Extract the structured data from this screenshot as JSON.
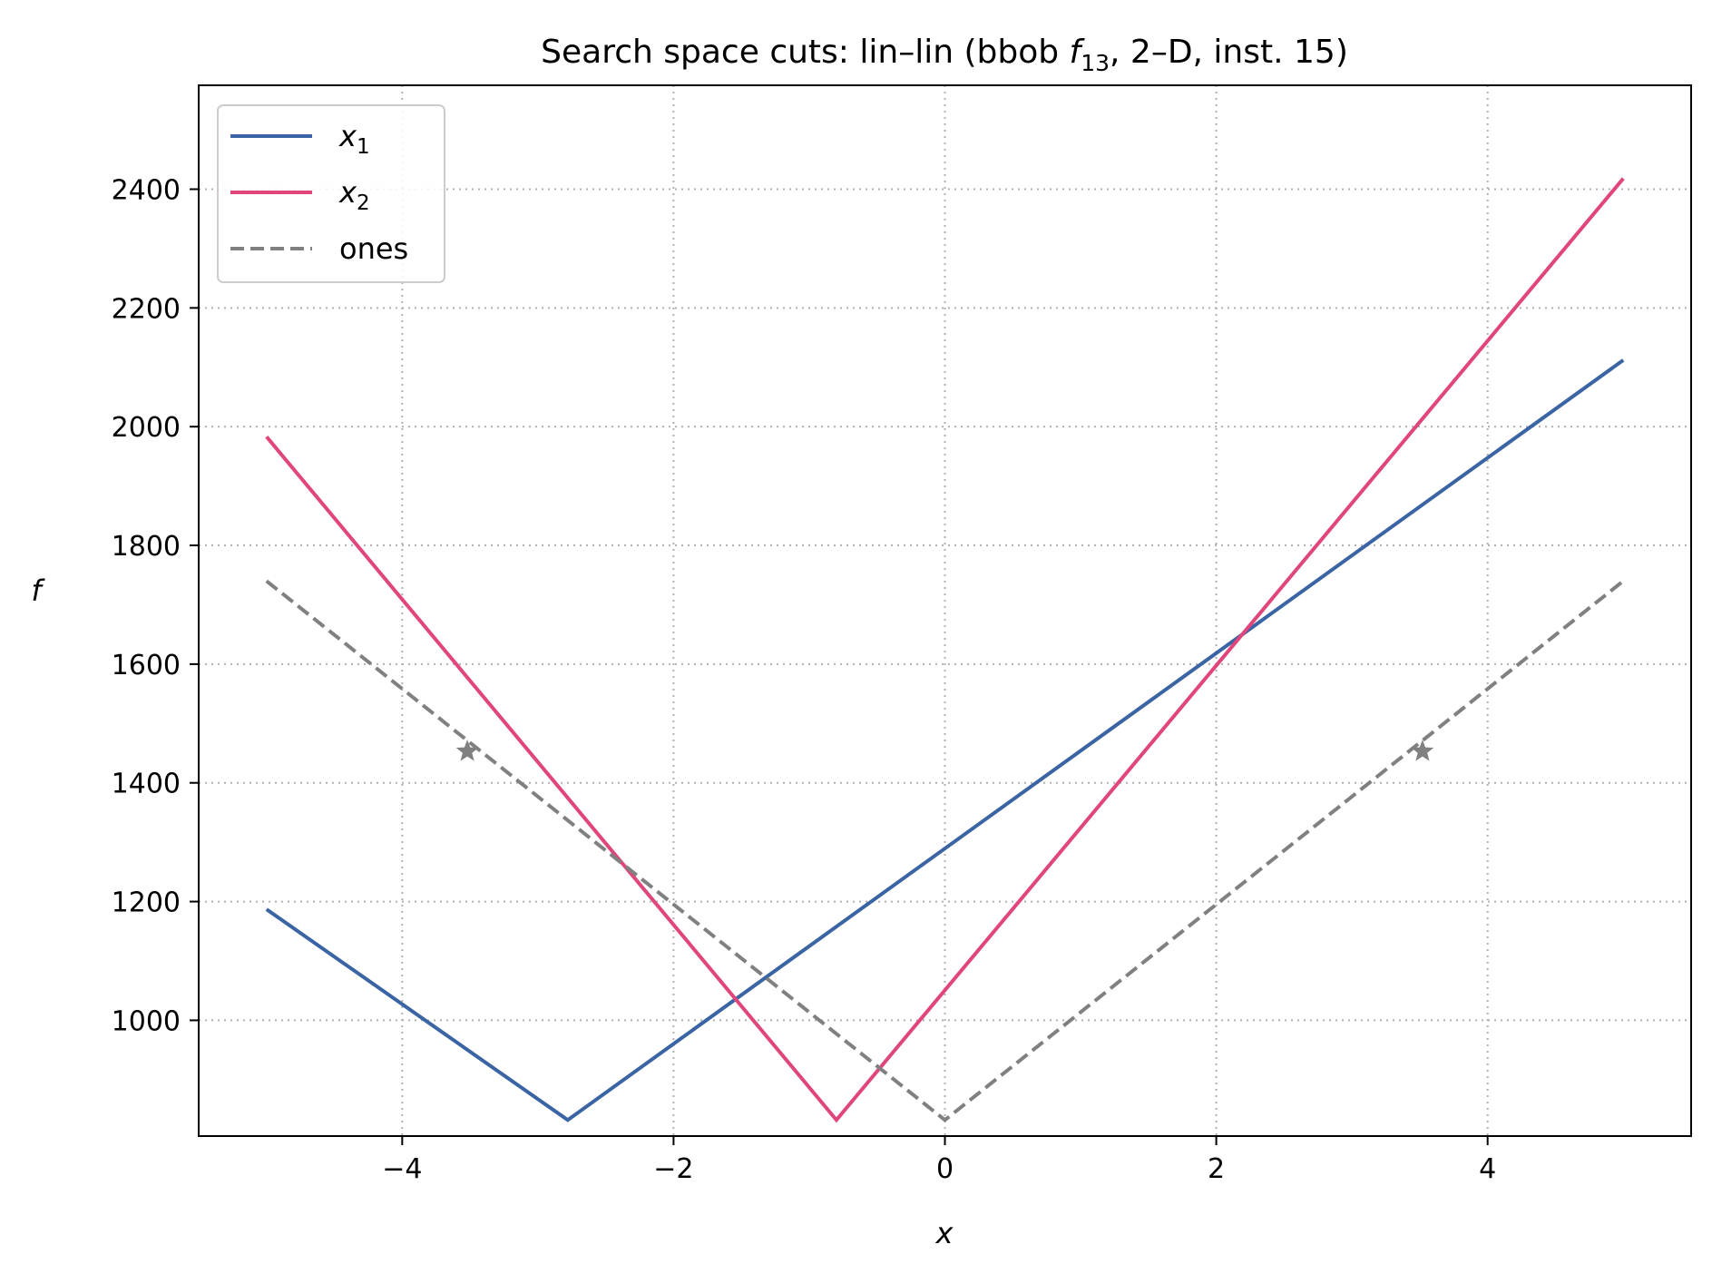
{
  "chart_data": {
    "type": "line",
    "title": {
      "prefix": "Search space cuts: lin–lin (bbob ",
      "func_symbol": "f",
      "func_subscript": "13",
      "suffix": ", 2–D, inst. 15)"
    },
    "xlabel": "x",
    "ylabel": "f",
    "xlim": [
      -5.5,
      5.5
    ],
    "ylim": [
      805,
      2575
    ],
    "xticks": [
      -4,
      -2,
      0,
      2,
      4
    ],
    "xtick_labels": [
      "−4",
      "−2",
      "0",
      "2",
      "4"
    ],
    "yticks": [
      1000,
      1200,
      1400,
      1600,
      1800,
      2000,
      2200,
      2400
    ],
    "ytick_labels": [
      "1000",
      "1200",
      "1400",
      "1600",
      "1800",
      "2000",
      "2200",
      "2400"
    ],
    "grid": true,
    "legend_position": "top-left",
    "series": [
      {
        "name": "x1",
        "legend_base": "x",
        "legend_sub": "1",
        "color": "#3a64a3",
        "style": "solid",
        "points": [
          [
            -5,
            1187
          ],
          [
            -2.78,
            832
          ],
          [
            5,
            2112
          ]
        ]
      },
      {
        "name": "x2",
        "legend_base": "x",
        "legend_sub": "2",
        "color": "#e0457b",
        "style": "solid",
        "points": [
          [
            -5,
            1983
          ],
          [
            -0.8,
            832
          ],
          [
            5,
            2418
          ]
        ]
      },
      {
        "name": "ones",
        "legend_base": "ones",
        "legend_sub": "",
        "color": "#808080",
        "style": "dashed",
        "points": [
          [
            -5,
            1740
          ],
          [
            0,
            832
          ],
          [
            5,
            1740
          ]
        ]
      }
    ],
    "markers": [
      {
        "x": -3.52,
        "y": 1453,
        "symbol": "star",
        "color": "#808080"
      },
      {
        "x": 3.52,
        "y": 1453,
        "symbol": "star",
        "color": "#808080"
      }
    ]
  }
}
